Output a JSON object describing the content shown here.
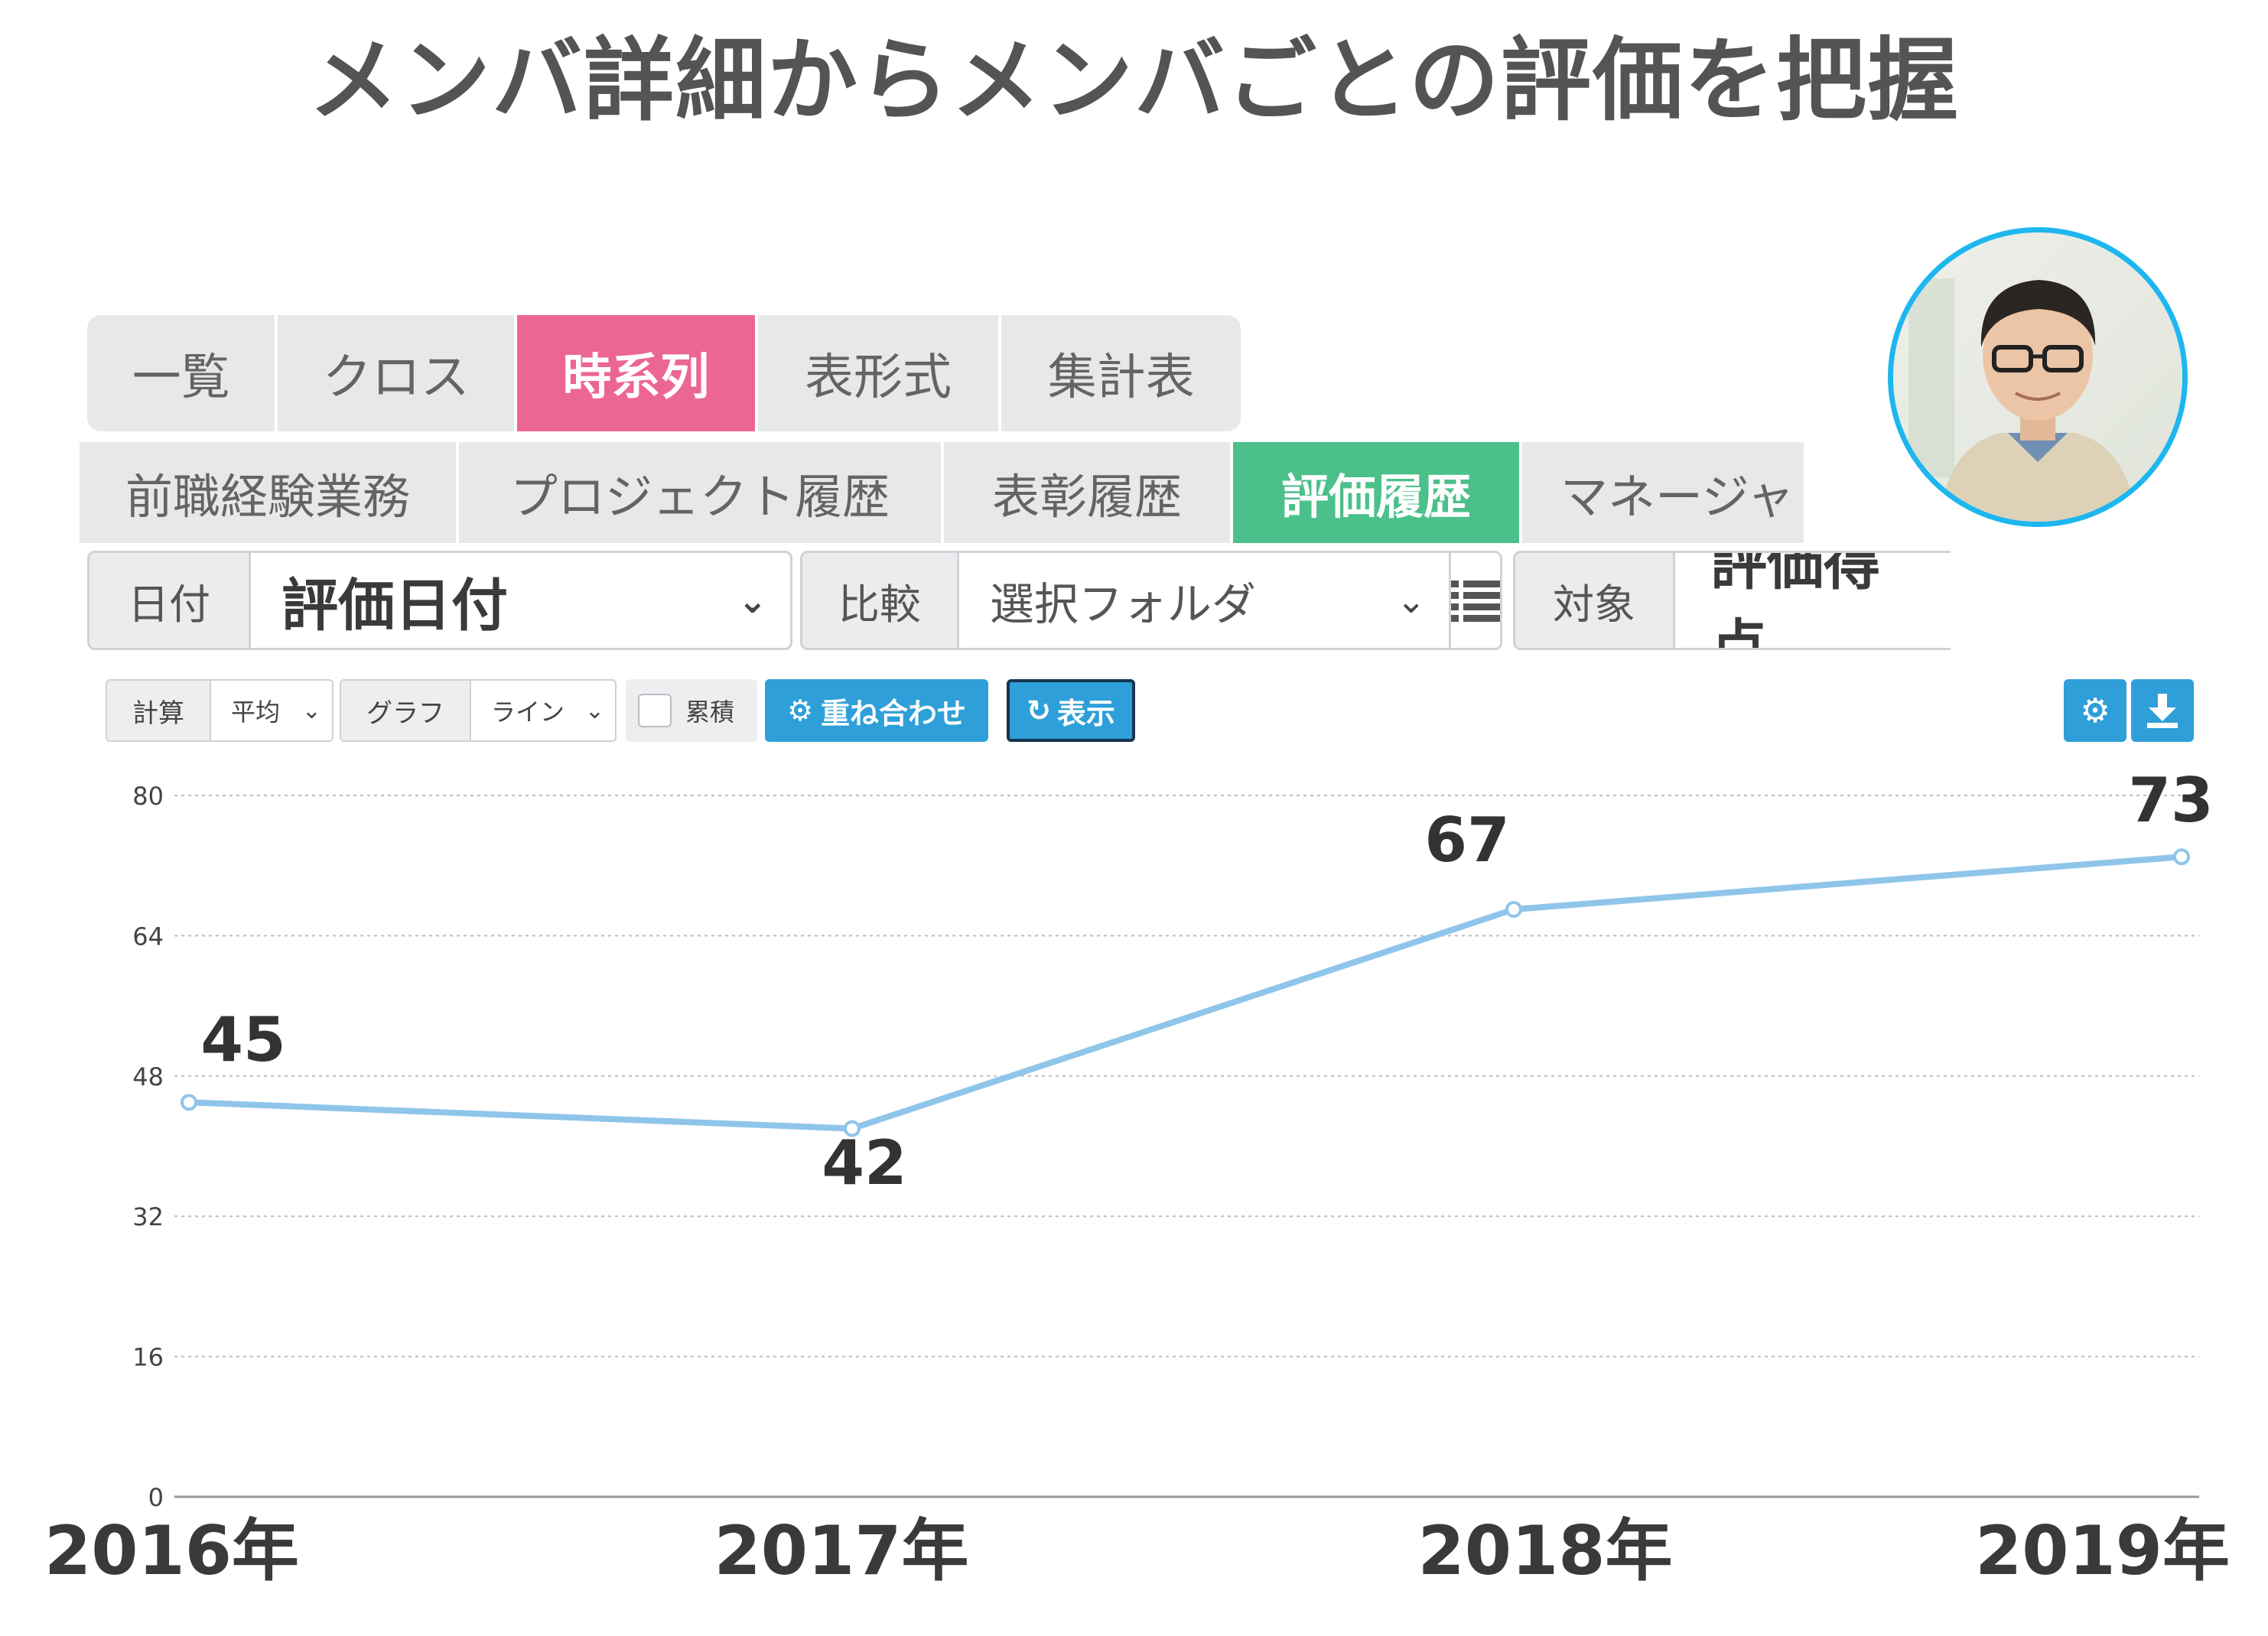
{
  "headline": "メンバ詳細からメンバごとの評価を把握",
  "view_tabs": [
    "一覧",
    "クロス",
    "時系列",
    "表形式",
    "集計表"
  ],
  "view_tabs_active": "時系列",
  "detail_tabs": [
    "前職経験業務",
    "プロジェクト履歴",
    "表彰履歴",
    "評価履歴",
    "マネージャ"
  ],
  "detail_tabs_active": "評価履歴",
  "filters": {
    "date_label": "日付",
    "date_value": "評価日付",
    "compare_label": "比較",
    "compare_value": "選択フォルダ",
    "target_label": "対象",
    "target_value": "評価得点"
  },
  "toolbar": {
    "calc_label": "計算",
    "calc_value": "平均",
    "graph_label": "グラフ",
    "graph_value": "ライン",
    "cumulative_label": "累積",
    "overlay_button": "重ね合わせ",
    "show_button": "表示"
  },
  "colors": {
    "view_tab_active": "#ec6693",
    "detail_tab_active": "#4cc08a",
    "button_blue": "#2e9fd8",
    "line": "#8fc5ea",
    "avatar_ring": "#1eb6ef"
  },
  "icons": [
    "gear-icon",
    "refresh-icon",
    "list-icon",
    "settings-icon",
    "download-icon",
    "chevron-down-icon"
  ],
  "chart_data": {
    "type": "line",
    "categories": [
      "2016年",
      "2017年",
      "2018年",
      "2019年"
    ],
    "series": [
      {
        "values": [
          45,
          42,
          67,
          73
        ]
      }
    ],
    "data_labels": [
      "45",
      "42",
      "67",
      "73"
    ],
    "yticks": [
      0,
      16,
      32,
      48,
      64,
      80
    ],
    "ylim": [
      0,
      80
    ],
    "grid": true
  }
}
